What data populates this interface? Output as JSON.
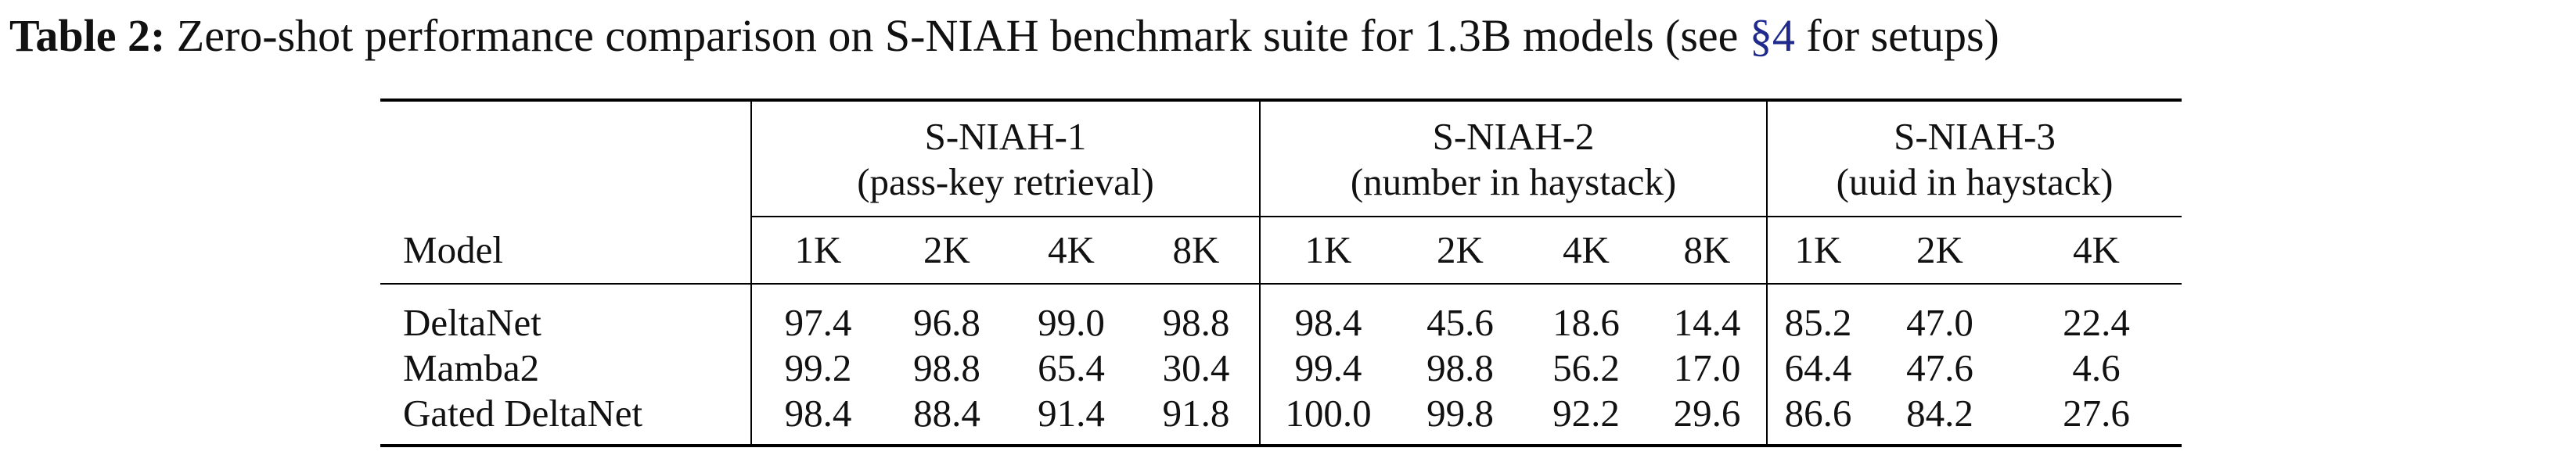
{
  "caption": {
    "label": "Table 2:",
    "text_before_ref": " Zero-shot performance comparison on S-NIAH benchmark suite for 1.3B models (see ",
    "ref": "§4",
    "text_after_ref": " for setups)"
  },
  "table": {
    "model_header": "Model",
    "groups": [
      {
        "title": "S-NIAH-1",
        "subtitle": "(pass-key retrieval)",
        "lengths": [
          "1K",
          "2K",
          "4K",
          "8K"
        ]
      },
      {
        "title": "S-NIAH-2",
        "subtitle": "(number in haystack)",
        "lengths": [
          "1K",
          "2K",
          "4K",
          "8K"
        ]
      },
      {
        "title": "S-NIAH-3",
        "subtitle": "(uuid in haystack)",
        "lengths": [
          "1K",
          "2K",
          "4K"
        ]
      }
    ],
    "rows": [
      {
        "model": "DeltaNet",
        "model_bold": false,
        "values": [
          "97.4",
          "96.8",
          "99.0",
          "98.8",
          "98.4",
          "45.6",
          "18.6",
          "14.4",
          "85.2",
          "47.0",
          "22.4"
        ],
        "bold": [
          false,
          false,
          true,
          true,
          false,
          false,
          false,
          false,
          false,
          false,
          false
        ]
      },
      {
        "model": "Mamba2",
        "model_bold": false,
        "values": [
          "99.2",
          "98.8",
          "65.4",
          "30.4",
          "99.4",
          "98.8",
          "56.2",
          "17.0",
          "64.4",
          "47.6",
          "4.6"
        ],
        "bold": [
          true,
          true,
          false,
          false,
          false,
          false,
          false,
          false,
          false,
          false,
          false
        ]
      },
      {
        "model": "Gated DeltaNet",
        "model_bold": true,
        "values": [
          "98.4",
          "88.4",
          "91.4",
          "91.8",
          "100.0",
          "99.8",
          "92.2",
          "29.6",
          "86.6",
          "84.2",
          "27.6"
        ],
        "bold": [
          false,
          false,
          false,
          false,
          true,
          true,
          true,
          true,
          true,
          true,
          true
        ]
      }
    ]
  }
}
